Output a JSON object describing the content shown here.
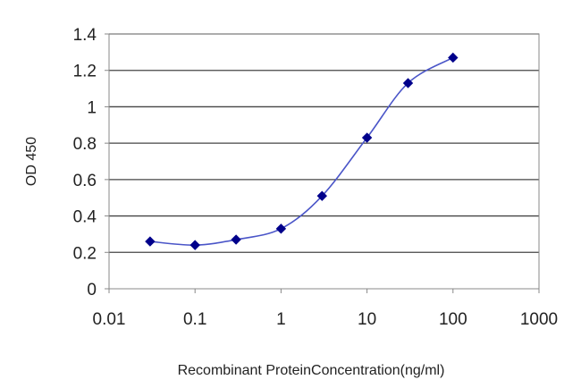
{
  "chart_data": {
    "type": "line",
    "title": "",
    "xlabel": "Recombinant ProteinConcentration(ng/ml)",
    "ylabel": "OD 450",
    "xscale": "log",
    "xlim": [
      0.01,
      1000
    ],
    "ylim": [
      0,
      1.4
    ],
    "xticks": [
      "0.01",
      "0.1",
      "1",
      "10",
      "100",
      "1000"
    ],
    "yticks": [
      "0",
      "0.2",
      "0.4",
      "0.6",
      "0.8",
      "1",
      "1.2",
      "1.4"
    ],
    "grid": "horizontal",
    "legend": "none",
    "series": [
      {
        "color": "#00008b",
        "x": [
          0.03,
          0.1,
          0.3,
          1,
          3,
          10,
          30,
          100
        ],
        "y": [
          0.26,
          0.24,
          0.27,
          0.33,
          0.51,
          0.83,
          1.13,
          1.27
        ]
      }
    ]
  }
}
